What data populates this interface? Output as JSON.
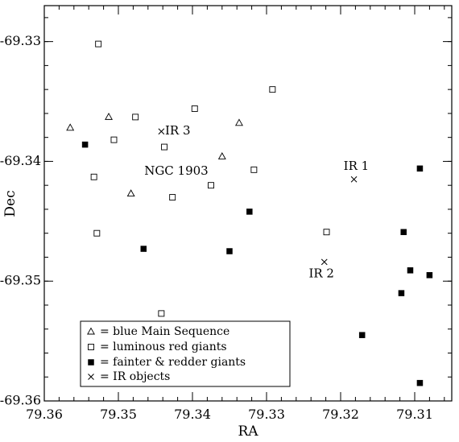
{
  "chart_data": {
    "type": "scatter",
    "xlabel": "RA",
    "ylabel": "Dec",
    "xlim": [
      79.36,
      79.305
    ],
    "ylim": [
      -69.36,
      -69.327
    ],
    "x_axis_reversed": true,
    "grid": false,
    "legend_position": "bottom-left",
    "x_ticks": [
      79.36,
      79.35,
      79.34,
      79.33,
      79.32,
      79.31
    ],
    "x_tick_labels": [
      "79.36",
      "79.35",
      "79.34",
      "79.33",
      "79.32",
      "79.31"
    ],
    "y_ticks": [
      -69.33,
      -69.34,
      -69.35,
      -69.36
    ],
    "y_tick_labels": [
      "-69.33",
      "-69.34",
      "-69.35",
      "-69.36"
    ],
    "series": [
      {
        "name": "blue Main Sequence",
        "marker": "triangle-open",
        "legend_label": "= blue Main Sequence",
        "points": [
          {
            "x": 79.3565,
            "y": -69.3372
          },
          {
            "x": 79.3513,
            "y": -69.3363
          },
          {
            "x": 79.3483,
            "y": -69.3427
          },
          {
            "x": 79.336,
            "y": -69.3396
          },
          {
            "x": 79.3337,
            "y": -69.3368
          }
        ]
      },
      {
        "name": "luminous red giants",
        "marker": "square-open",
        "legend_label": "= luminous red giants",
        "points": [
          {
            "x": 79.3527,
            "y": -69.3302
          },
          {
            "x": 79.3292,
            "y": -69.334
          },
          {
            "x": 79.3397,
            "y": -69.3356
          },
          {
            "x": 79.3477,
            "y": -69.3363
          },
          {
            "x": 79.3506,
            "y": -69.3382
          },
          {
            "x": 79.3438,
            "y": -69.3388
          },
          {
            "x": 79.3533,
            "y": -69.3413
          },
          {
            "x": 79.3317,
            "y": -69.3407
          },
          {
            "x": 79.3375,
            "y": -69.342
          },
          {
            "x": 79.3427,
            "y": -69.343
          },
          {
            "x": 79.3529,
            "y": -69.346
          },
          {
            "x": 79.3219,
            "y": -69.3459
          },
          {
            "x": 79.3442,
            "y": -69.3527
          }
        ]
      },
      {
        "name": "fainter & redder giants",
        "marker": "square-filled",
        "legend_label": "= fainter & redder giants",
        "points": [
          {
            "x": 79.3545,
            "y": -69.3386
          },
          {
            "x": 79.3323,
            "y": -69.3442
          },
          {
            "x": 79.3466,
            "y": -69.3473
          },
          {
            "x": 79.335,
            "y": -69.3475
          },
          {
            "x": 79.3093,
            "y": -69.3406
          },
          {
            "x": 79.3115,
            "y": -69.3459
          },
          {
            "x": 79.3106,
            "y": -69.3491
          },
          {
            "x": 79.308,
            "y": -69.3495
          },
          {
            "x": 79.3118,
            "y": -69.351
          },
          {
            "x": 79.3171,
            "y": -69.3545
          },
          {
            "x": 79.3093,
            "y": -69.3585
          }
        ]
      },
      {
        "name": "IR objects",
        "marker": "x",
        "legend_label": "= IR objects",
        "points": [
          {
            "x": 79.3442,
            "y": -69.3375
          },
          {
            "x": 79.3182,
            "y": -69.3415
          },
          {
            "x": 79.3222,
            "y": -69.3484
          }
        ]
      }
    ],
    "annotations": [
      {
        "text": "IR 3",
        "x": 79.3437,
        "y": -69.3375,
        "anchor": "start",
        "baseline": "middle"
      },
      {
        "text": "IR 1",
        "x": 79.3196,
        "y": -69.3407,
        "anchor": "start",
        "baseline": "auto"
      },
      {
        "text": "IR 2",
        "x": 79.3243,
        "y": -69.3497,
        "anchor": "start",
        "baseline": "auto"
      },
      {
        "text": "NGC 1903",
        "x": 79.3465,
        "y": -69.3411,
        "anchor": "start",
        "baseline": "auto"
      }
    ]
  }
}
